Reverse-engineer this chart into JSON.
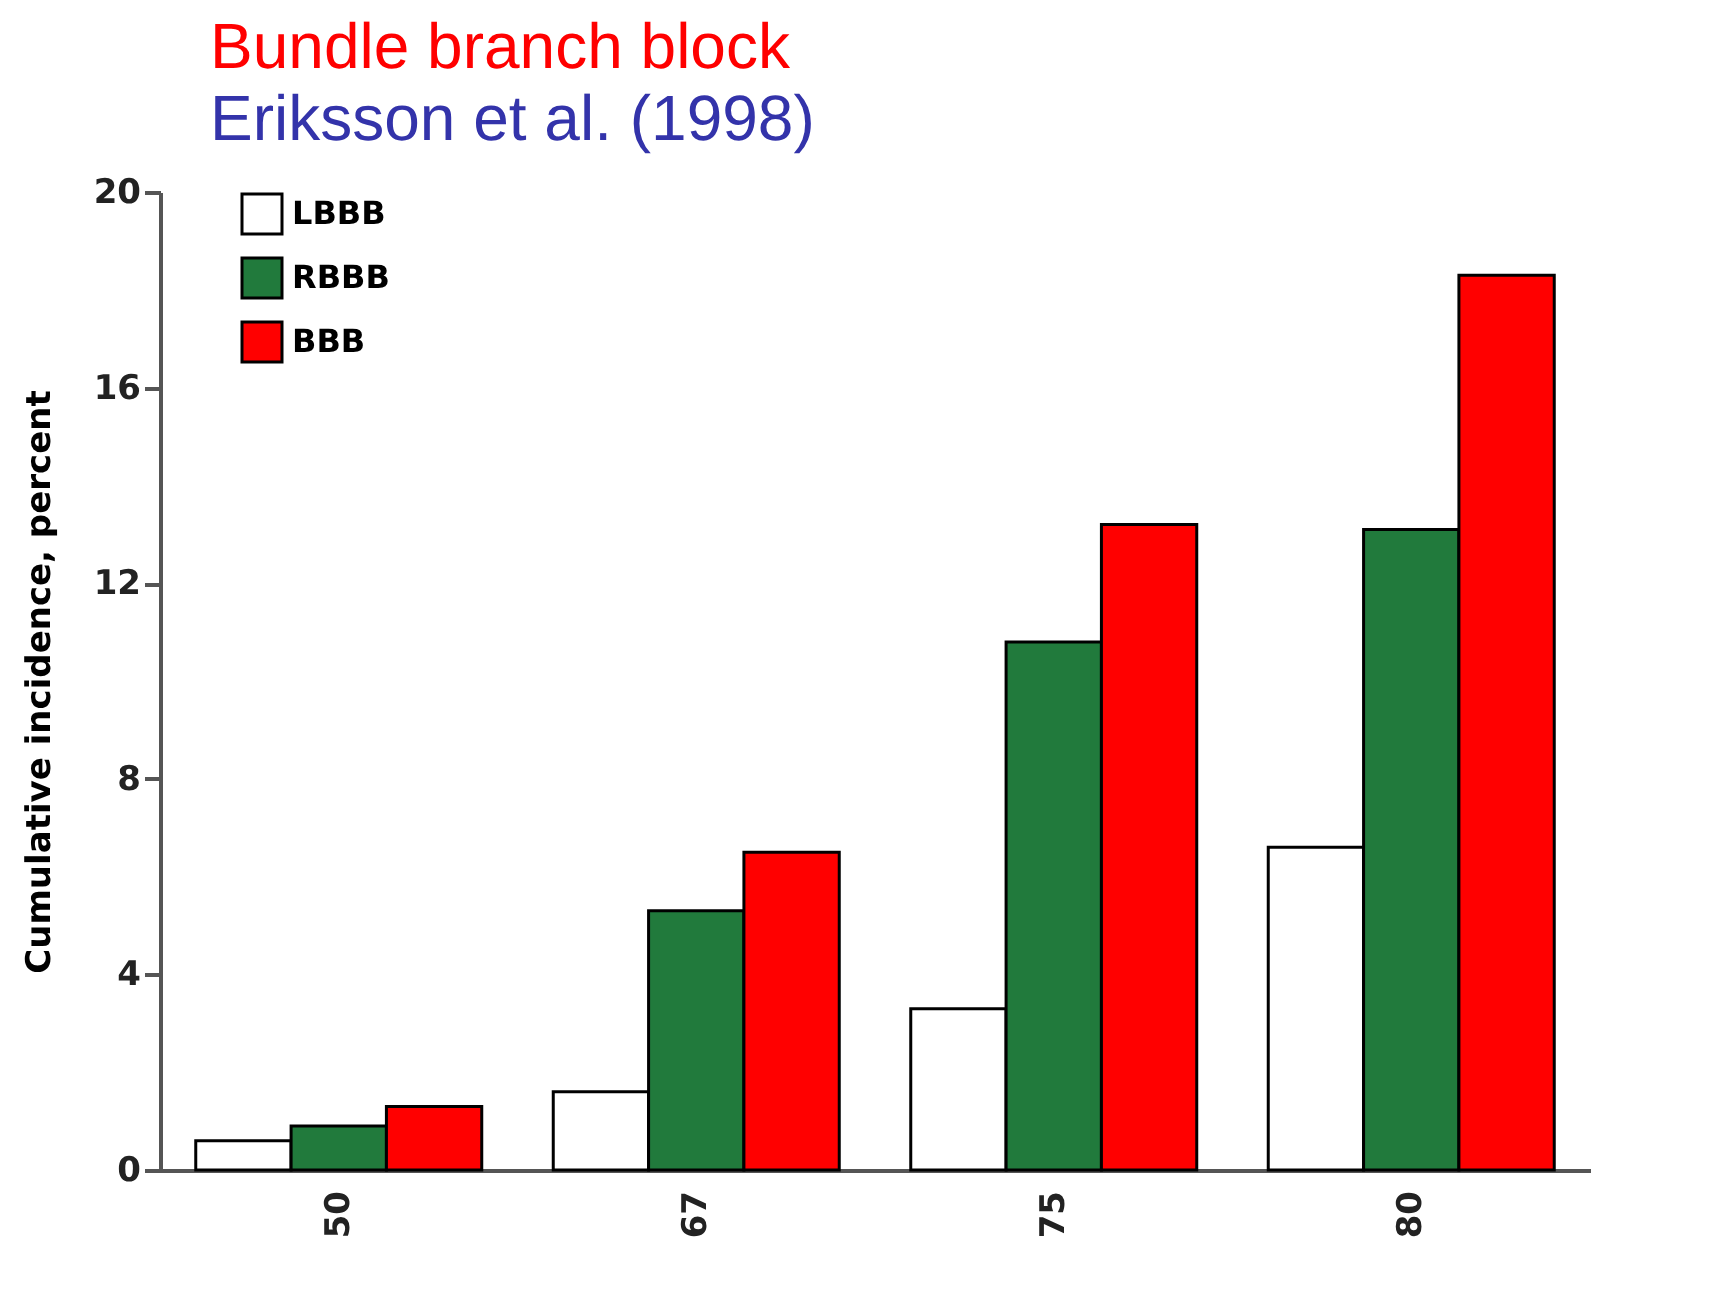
{
  "chart_data": {
    "type": "bar",
    "title": "Bundle branch block",
    "subtitle": "Eriksson et al. (1998)",
    "ylabel": "Cumulative incidence, percent",
    "categories": [
      "50",
      "67",
      "75",
      "80"
    ],
    "series": [
      {
        "name": "LBBB",
        "color": "#ffffff",
        "values": [
          0.6,
          1.6,
          3.3,
          6.6
        ]
      },
      {
        "name": "RBBB",
        "color": "#217a3c",
        "values": [
          0.9,
          5.3,
          10.8,
          13.1
        ]
      },
      {
        "name": "BBB",
        "color": "#ff0000",
        "values": [
          1.3,
          6.5,
          13.2,
          18.3
        ]
      }
    ],
    "ylim": [
      0,
      20
    ],
    "yticks": [
      0,
      4,
      8,
      12,
      16,
      20
    ],
    "grid": false,
    "legend": "top left"
  }
}
